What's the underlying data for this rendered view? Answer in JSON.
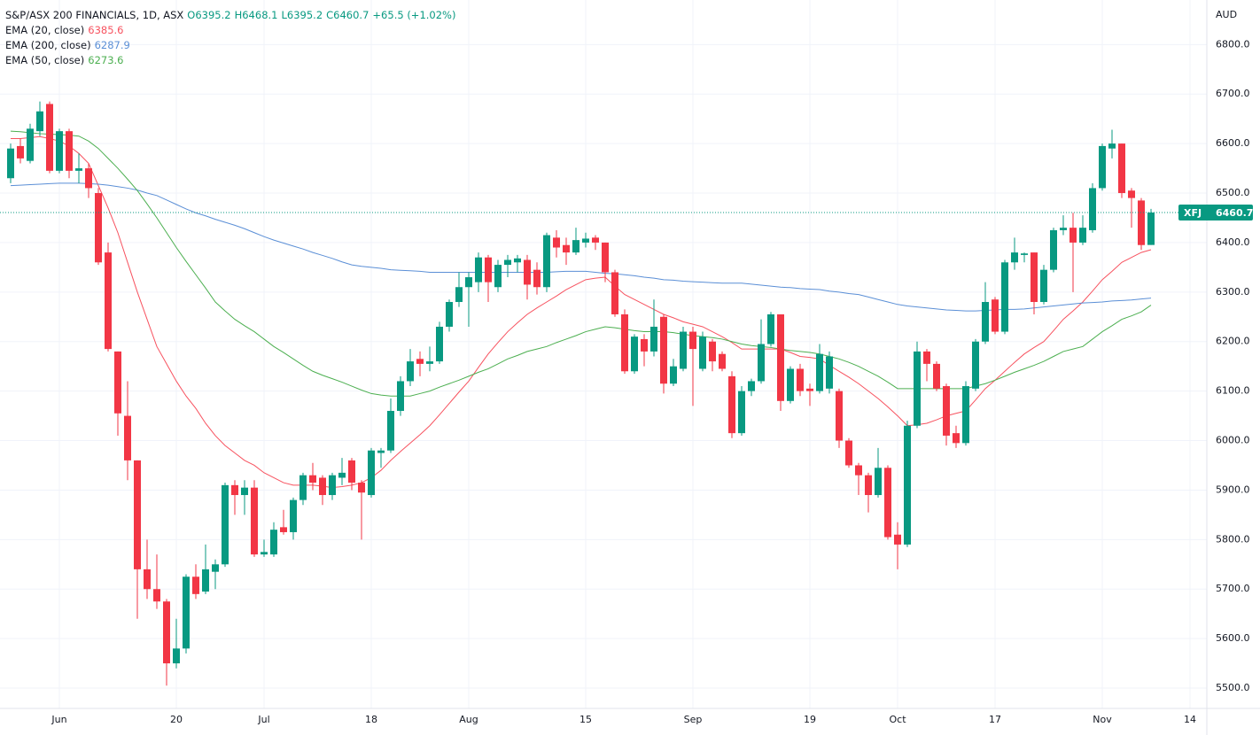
{
  "chart_data": {
    "type": "candlestick",
    "title": "S&P/ASX 200 FINANCIALS, 1D, ASX",
    "ohlc_labels": [
      "O6395.2",
      "H6468.1",
      "L6395.2",
      "C6460.7"
    ],
    "change_label": "+65.5 (+1.02%)",
    "currency": "AUD",
    "ticker": "XFJ",
    "up_color": "#089981",
    "down_color": "#f23645",
    "grid": true,
    "categories": [
      null,
      null,
      null,
      null,
      null,
      "Jun",
      null,
      null,
      null,
      null,
      null,
      null,
      null,
      null,
      null,
      null,
      null,
      "20",
      null,
      null,
      null,
      null,
      null,
      null,
      null,
      null,
      "Jul",
      null,
      null,
      null,
      null,
      null,
      null,
      null,
      null,
      null,
      null,
      "18",
      null,
      null,
      null,
      null,
      null,
      null,
      null,
      null,
      null,
      "Aug",
      null,
      null,
      null,
      null,
      null,
      null,
      null,
      null,
      null,
      null,
      null,
      "15",
      null,
      null,
      null,
      null,
      null,
      null,
      null,
      null,
      null,
      null,
      "Sep",
      null,
      null,
      null,
      null,
      null,
      null,
      null,
      null,
      null,
      null,
      null,
      "19",
      null,
      null,
      null,
      null,
      null,
      null,
      null,
      null,
      "Oct",
      null,
      null,
      null,
      null,
      null,
      null,
      null,
      null,
      null,
      "17",
      null,
      null,
      null,
      null,
      null,
      null,
      null,
      null,
      null,
      null,
      "Nov",
      null,
      null,
      null,
      null,
      null,
      null,
      null,
      null,
      "14"
    ],
    "ohlc": {
      "open": [
        6530,
        6595,
        6565,
        6625,
        6680,
        6545,
        6625,
        6545,
        6550,
        6500,
        6380,
        6180,
        6050,
        5960,
        5740,
        5700,
        5675,
        5550,
        5580,
        5725,
        5695,
        5735,
        5750,
        5910,
        5890,
        5905,
        5770,
        5770,
        5825,
        5815,
        5880,
        5930,
        5925,
        5890,
        5925,
        5960,
        5915,
        5890,
        5975,
        5980,
        6060,
        6120,
        6165,
        6155,
        6160,
        6230,
        6280,
        6310,
        6320,
        6370,
        6310,
        6355,
        6360,
        6365,
        6345,
        6310,
        6410,
        6395,
        6380,
        6400,
        6410,
        6400,
        6340,
        6255,
        6140,
        6205,
        6180,
        6250,
        6115,
        6145,
        6220,
        6145,
        6200,
        6175,
        6130,
        6015,
        6100,
        6120,
        6195,
        6255,
        6080,
        6145,
        6105,
        6100,
        6105,
        6100,
        6000,
        5950,
        5930,
        5890,
        5945,
        5810,
        5790,
        6030,
        6180,
        6155,
        6110,
        6015,
        5995,
        6105,
        6200,
        6285,
        6220,
        6360,
        6375,
        6380,
        6280,
        6345,
        6425,
        6430,
        6400,
        6425,
        6510,
        6590,
        6600,
        6505,
        6485,
        6395.2,
        null,
        null,
        null,
        null
      ],
      "high": [
        6600,
        6610,
        6640,
        6685,
        6685,
        6630,
        6630,
        6580,
        6560,
        6510,
        6400,
        6180,
        6120,
        5960,
        5800,
        5770,
        5680,
        5640,
        5730,
        5750,
        5790,
        5760,
        5915,
        5920,
        5920,
        5920,
        5800,
        5835,
        5860,
        5885,
        5935,
        5955,
        5930,
        5935,
        5965,
        5965,
        5920,
        5985,
        5985,
        6085,
        6130,
        6185,
        6180,
        6190,
        6240,
        6285,
        6340,
        6340,
        6380,
        6375,
        6365,
        6375,
        6375,
        6375,
        6360,
        6420,
        6425,
        6410,
        6430,
        6420,
        6415,
        6400,
        6345,
        6265,
        6215,
        6215,
        6285,
        6255,
        6165,
        6230,
        6230,
        6220,
        6205,
        6180,
        6140,
        6110,
        6125,
        6245,
        6260,
        6255,
        6150,
        6155,
        6115,
        6195,
        6180,
        6105,
        6005,
        5955,
        5935,
        5985,
        5950,
        5835,
        6040,
        6200,
        6185,
        6160,
        6115,
        6030,
        6120,
        6205,
        6320,
        6290,
        6365,
        6410,
        6380,
        6380,
        6355,
        6430,
        6455,
        6460,
        6455,
        6520,
        6600,
        6628,
        6600,
        6510,
        6490,
        6468.1,
        null,
        null,
        null,
        null
      ],
      "low": [
        6520,
        6560,
        6560,
        6615,
        6540,
        6540,
        6530,
        6520,
        6490,
        6355,
        6180,
        6010,
        5920,
        5640,
        5680,
        5660,
        5505,
        5540,
        5570,
        5680,
        5690,
        5700,
        5745,
        5850,
        5850,
        5765,
        5765,
        5765,
        5810,
        5800,
        5870,
        5900,
        5870,
        5880,
        5910,
        5900,
        5800,
        5885,
        5945,
        5975,
        6050,
        6110,
        6130,
        6140,
        6155,
        6220,
        6270,
        6230,
        6300,
        6280,
        6300,
        6330,
        6340,
        6285,
        6295,
        6300,
        6370,
        6355,
        6375,
        6390,
        6385,
        6320,
        6250,
        6135,
        6135,
        6150,
        6170,
        6095,
        6110,
        6140,
        6070,
        6140,
        6140,
        6140,
        6005,
        6010,
        6090,
        6115,
        6190,
        6060,
        6075,
        6090,
        6070,
        6095,
        6095,
        5985,
        5945,
        5890,
        5855,
        5885,
        5800,
        5740,
        5785,
        6025,
        6120,
        6100,
        5990,
        5985,
        5990,
        6100,
        6195,
        6215,
        6215,
        6345,
        6360,
        6255,
        6275,
        6340,
        6415,
        6300,
        6395,
        6420,
        6505,
        6570,
        6490,
        6430,
        6385,
        6395.2,
        null,
        null,
        null,
        null
      ],
      "close": [
        6590,
        6570,
        6630,
        6665,
        6545,
        6625,
        6545,
        6550,
        6510,
        6360,
        6185,
        6055,
        5960,
        5740,
        5700,
        5675,
        5550,
        5580,
        5725,
        5690,
        5740,
        5750,
        5910,
        5890,
        5905,
        5770,
        5775,
        5820,
        5815,
        5880,
        5930,
        5915,
        5890,
        5930,
        5935,
        5915,
        5895,
        5980,
        5980,
        6060,
        6120,
        6160,
        6155,
        6160,
        6230,
        6280,
        6310,
        6330,
        6370,
        6320,
        6355,
        6365,
        6368,
        6315,
        6310,
        6415,
        6390,
        6380,
        6405,
        6408,
        6400,
        6340,
        6255,
        6140,
        6210,
        6180,
        6230,
        6115,
        6150,
        6220,
        6185,
        6210,
        6160,
        6145,
        6015,
        6100,
        6120,
        6195,
        6255,
        6080,
        6145,
        6100,
        6100,
        6175,
        6170,
        6000,
        5950,
        5930,
        5890,
        5945,
        5805,
        5790,
        6030,
        6180,
        6155,
        6105,
        6010,
        5995,
        6110,
        6200,
        6280,
        6220,
        6360,
        6380,
        6378,
        6280,
        6345,
        6425,
        6430,
        6400,
        6430,
        6510,
        6595,
        6600,
        6500,
        6490,
        6395,
        6460.7,
        null,
        null,
        null,
        null
      ]
    },
    "series": [
      {
        "name": "EMA (20, close)",
        "color": "#f7525f",
        "values": [
          6610,
          6610,
          6612,
          6614,
          6610,
          6605,
          6595,
          6580,
          6560,
          6515,
          6470,
          6420,
          6360,
          6300,
          6245,
          6190,
          6155,
          6120,
          6090,
          6065,
          6035,
          6010,
          5990,
          5975,
          5960,
          5950,
          5935,
          5925,
          5915,
          5910,
          5910,
          5910,
          5908,
          5905,
          5907,
          5910,
          5915,
          5925,
          5940,
          5960,
          5978,
          5995,
          6012,
          6030,
          6052,
          6075,
          6098,
          6120,
          6148,
          6175,
          6198,
          6220,
          6238,
          6255,
          6268,
          6280,
          6292,
          6305,
          6315,
          6325,
          6328,
          6330,
          6312,
          6295,
          6285,
          6275,
          6265,
          6255,
          6248,
          6240,
          6235,
          6230,
          6220,
          6210,
          6198,
          6185,
          6185,
          6185,
          6185,
          6185,
          6178,
          6170,
          6168,
          6165,
          6152,
          6140,
          6128,
          6115,
          6100,
          6085,
          6068,
          6050,
          6030,
          6032,
          6035,
          6042,
          6050,
          6055,
          6060,
          6082,
          6105,
          6122,
          6140,
          6158,
          6175,
          6188,
          6200,
          6222,
          6245,
          6262,
          6280,
          6302,
          6325,
          6342,
          6360,
          6370,
          6380,
          6385.6,
          null,
          null,
          null,
          null
        ]
      },
      {
        "name": "EMA (200, close)",
        "color": "#5b8fd6",
        "values": [
          6515,
          6516,
          6517,
          6518,
          6519,
          6520,
          6520,
          6520,
          6519,
          6518,
          6516,
          6513,
          6510,
          6506,
          6500,
          6495,
          6486,
          6477,
          6468,
          6460,
          6454,
          6447,
          6441,
          6435,
          6428,
          6420,
          6412,
          6405,
          6399,
          6393,
          6387,
          6380,
          6374,
          6368,
          6361,
          6355,
          6352,
          6350,
          6348,
          6345,
          6344,
          6343,
          6342,
          6340,
          6340,
          6340,
          6340,
          6340,
          6340,
          6340,
          6340,
          6340,
          6340,
          6340,
          6340,
          6340,
          6341,
          6342,
          6342,
          6342,
          6340,
          6338,
          6337,
          6335,
          6333,
          6330,
          6328,
          6325,
          6324,
          6322,
          6321,
          6320,
          6319,
          6318,
          6318,
          6318,
          6316,
          6314,
          6312,
          6310,
          6309,
          6307,
          6306,
          6305,
          6302,
          6300,
          6297,
          6295,
          6290,
          6285,
          6280,
          6275,
          6272,
          6270,
          6268,
          6266,
          6264,
          6263,
          6262,
          6262,
          6263,
          6264,
          6265,
          6265,
          6266,
          6268,
          6270,
          6272,
          6274,
          6276,
          6278,
          6279,
          6280,
          6282,
          6283,
          6284,
          6286,
          6287.9,
          null,
          null,
          null,
          null
        ]
      },
      {
        "name": "EMA (50, close)",
        "color": "#4caf50",
        "values": [
          6625,
          6624,
          6622,
          6620,
          6619,
          6618,
          6617,
          6615,
          6605,
          6590,
          6570,
          6550,
          6528,
          6505,
          6478,
          6450,
          6420,
          6390,
          6362,
          6335,
          6308,
          6280,
          6262,
          6245,
          6232,
          6220,
          6205,
          6190,
          6178,
          6165,
          6152,
          6140,
          6132,
          6125,
          6118,
          6110,
          6102,
          6095,
          6092,
          6090,
          6090,
          6090,
          6095,
          6100,
          6108,
          6115,
          6122,
          6130,
          6138,
          6145,
          6155,
          6165,
          6172,
          6180,
          6185,
          6190,
          6198,
          6205,
          6212,
          6220,
          6225,
          6230,
          6228,
          6225,
          6222,
          6220,
          6220,
          6220,
          6218,
          6215,
          6212,
          6210,
          6208,
          6205,
          6200,
          6195,
          6192,
          6190,
          6188,
          6185,
          6182,
          6180,
          6178,
          6175,
          6170,
          6165,
          6158,
          6150,
          6140,
          6130,
          6118,
          6105,
          6105,
          6105,
          6105,
          6105,
          6105,
          6105,
          6105,
          6110,
          6115,
          6122,
          6130,
          6138,
          6145,
          6152,
          6160,
          6170,
          6180,
          6185,
          6190,
          6205,
          6220,
          6232,
          6245,
          6252,
          6260,
          6273.6,
          null,
          null,
          null,
          null
        ]
      }
    ],
    "ylim": [
      5450,
      6890
    ],
    "yticks": [
      {
        "value": 5500,
        "label": "5500.0"
      },
      {
        "value": 5600,
        "label": "5600.0"
      },
      {
        "value": 5700,
        "label": "5700.0"
      },
      {
        "value": 5800,
        "label": "5800.0"
      },
      {
        "value": 5900,
        "label": "5900.0"
      },
      {
        "value": 6000,
        "label": "6000.0"
      },
      {
        "value": 6100,
        "label": "6100.0"
      },
      {
        "value": 6200,
        "label": "6200.0"
      },
      {
        "value": 6300,
        "label": "6300.0"
      },
      {
        "value": 6400,
        "label": "6400.0"
      },
      {
        "value": 6500,
        "label": "6500.0"
      },
      {
        "value": 6600,
        "label": "6600.0"
      },
      {
        "value": 6700,
        "label": "6700.0"
      },
      {
        "value": 6800,
        "label": "6800.0"
      }
    ]
  }
}
